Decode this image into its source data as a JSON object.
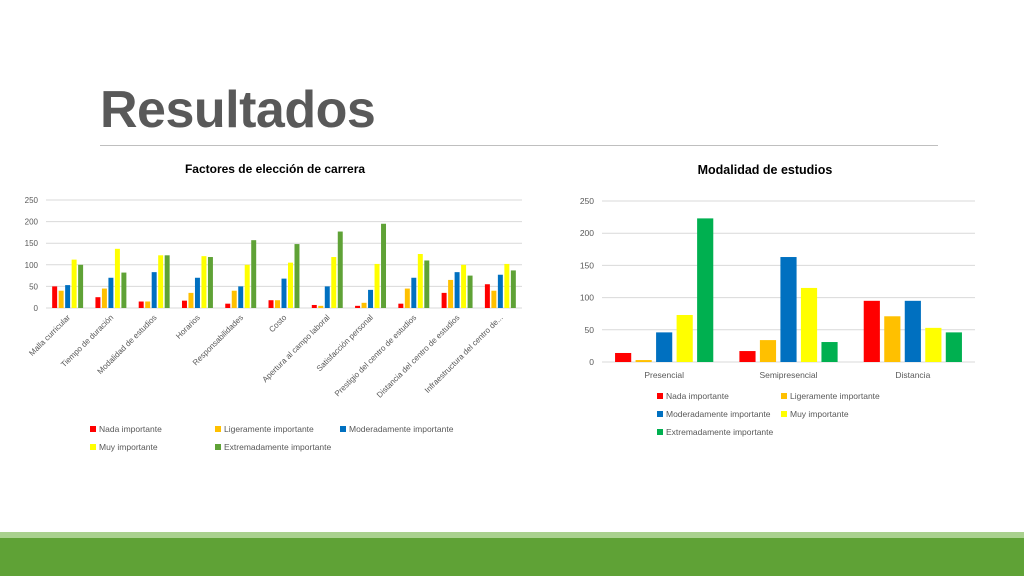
{
  "slide": {
    "title": "Resultados",
    "accent_light": "#A9D18E",
    "accent_dark": "#5FA236"
  },
  "series_colors": [
    "#FF0000",
    "#FFC000",
    "#0070C0",
    "#FFFF00",
    "#00B050"
  ],
  "chart_data": [
    {
      "type": "bar",
      "title": "Factores de elección de carrera",
      "categories": [
        "Malla curricular",
        "Tiempo de duración",
        "Modalidad de estudios",
        "Horarios",
        "Responsabilidades",
        "Costo",
        "Apertura al campo laboral",
        "Satisfacción personal",
        "Prestigio del centro de estudios",
        "Distancia  del centro de estudios",
        "Infraestructura del centro de..."
      ],
      "series": [
        {
          "name": "Nada importante",
          "color": "#FF0000",
          "values": [
            50,
            25,
            15,
            17,
            10,
            18,
            7,
            5,
            10,
            35,
            55
          ]
        },
        {
          "name": "Ligeramente importante",
          "color": "#FFC000",
          "values": [
            40,
            45,
            15,
            35,
            40,
            18,
            5,
            12,
            45,
            65,
            40
          ]
        },
        {
          "name": "Moderadamente importante",
          "color": "#0070C0",
          "values": [
            53,
            70,
            83,
            70,
            50,
            68,
            50,
            42,
            70,
            83,
            77
          ]
        },
        {
          "name": "Muy importante",
          "color": "#FFFF00",
          "values": [
            112,
            137,
            122,
            120,
            100,
            105,
            118,
            102,
            125,
            100,
            102
          ]
        },
        {
          "name": "Extremadamente importante",
          "color": "#5FA236",
          "values": [
            100,
            82,
            122,
            118,
            157,
            148,
            177,
            195,
            110,
            75,
            87
          ]
        }
      ],
      "ylim": [
        0,
        250
      ],
      "yticks": [
        0,
        50,
        100,
        150,
        200,
        250
      ],
      "grid": true,
      "legend": "bottom"
    },
    {
      "type": "bar",
      "title": "Modalidad de estudios",
      "categories": [
        "Presencial",
        "Semipresencial",
        "Distancia"
      ],
      "series": [
        {
          "name": "Nada importante",
          "color": "#FF0000",
          "values": [
            14,
            17,
            95
          ]
        },
        {
          "name": "Ligeramente importante",
          "color": "#FFC000",
          "values": [
            3,
            34,
            71
          ]
        },
        {
          "name": "Moderadamente importante",
          "color": "#0070C0",
          "values": [
            46,
            163,
            95
          ]
        },
        {
          "name": "Muy importante",
          "color": "#FFFF00",
          "values": [
            73,
            115,
            53
          ]
        },
        {
          "name": "Extremadamente importante",
          "color": "#00B050",
          "values": [
            223,
            31,
            46
          ]
        }
      ],
      "ylim": [
        0,
        250
      ],
      "yticks": [
        0,
        50,
        100,
        150,
        200,
        250
      ],
      "grid": true,
      "legend": "bottom"
    }
  ]
}
